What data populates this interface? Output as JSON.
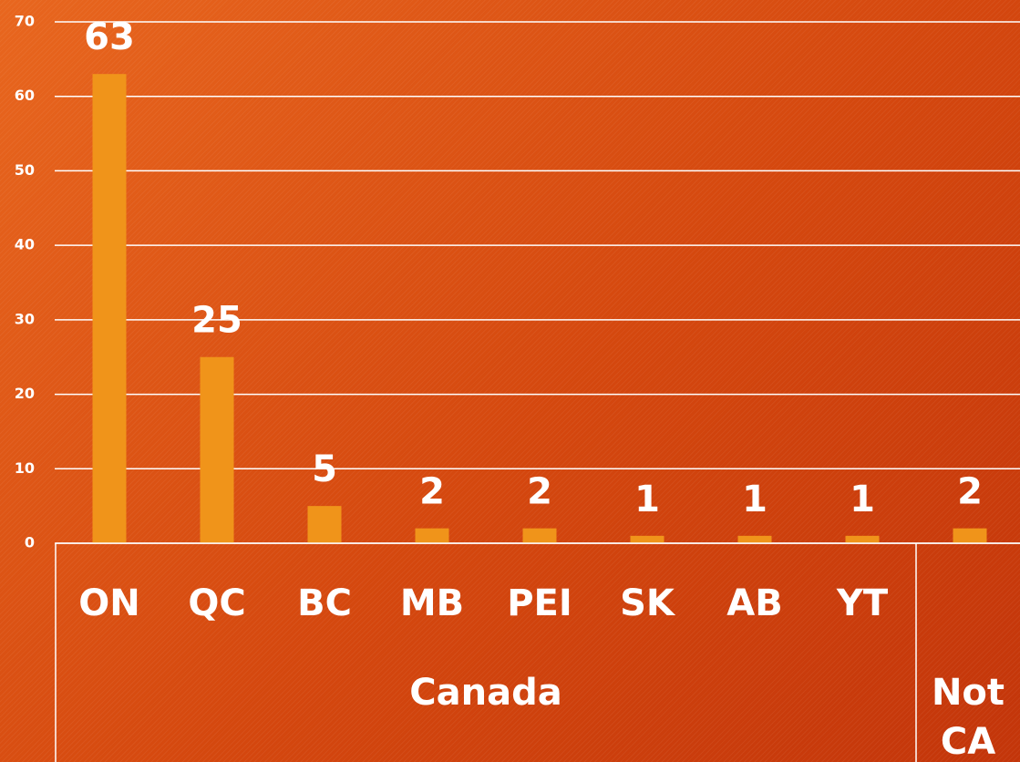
{
  "chart_data": {
    "type": "bar",
    "categories": [
      "ON",
      "QC",
      "BC",
      "MB",
      "PEI",
      "SK",
      "AB",
      "YT",
      null
    ],
    "values": [
      63,
      25,
      5,
      2,
      2,
      1,
      1,
      1,
      2
    ],
    "color": "#f0941a",
    "groups": [
      {
        "name": "Canada",
        "size": 8
      },
      {
        "name": "Not CA",
        "size": 1
      }
    ],
    "ylim": [
      0,
      70
    ],
    "yticks": [
      0,
      10,
      20,
      30,
      40,
      50,
      60,
      70
    ],
    "grid": true
  }
}
